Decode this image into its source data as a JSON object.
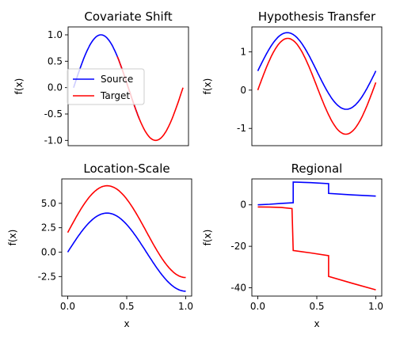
{
  "chart_data": [
    {
      "type": "line",
      "title": "Covariate Shift",
      "xlabel": "",
      "ylabel": "f(x)",
      "xlim": [
        -0.05,
        1.05
      ],
      "ylim": [
        -1.1,
        1.15
      ],
      "xticks": [],
      "yticks": [
        "1.0",
        "0.5",
        "0.0",
        "-0.5",
        "-1.0"
      ],
      "ytick_values": [
        1.0,
        0.5,
        0.0,
        -0.5,
        -1.0
      ],
      "legend": {
        "placement": "center-left",
        "entries": [
          "Source",
          "Target"
        ]
      },
      "series": [
        {
          "name": "Source",
          "color": "#0000ff",
          "x_range": [
            0.0,
            0.6
          ],
          "function": "sin(2*pi*x)"
        },
        {
          "name": "Target",
          "color": "#ff0000",
          "x_range": [
            0.4,
            1.0
          ],
          "function": "sin(2*pi*x)"
        }
      ]
    },
    {
      "type": "line",
      "title": "Hypothesis Transfer",
      "xlabel": "",
      "ylabel": "f(x)",
      "xlim": [
        -0.05,
        1.05
      ],
      "ylim": [
        -1.45,
        1.65
      ],
      "xticks": [],
      "yticks": [
        "1",
        "0",
        "-1"
      ],
      "ytick_values": [
        1,
        0,
        -1
      ],
      "series": [
        {
          "name": "Source",
          "color": "#0000ff",
          "x_range": [
            0.0,
            1.0
          ],
          "function": "sin(2*pi*x)+0.5"
        },
        {
          "name": "Target",
          "color": "#ff0000",
          "x_range": [
            0.0,
            1.0
          ],
          "function": "1.3*sin(2*pi*x)+0.2*x"
        }
      ]
    },
    {
      "type": "line",
      "title": "Location-Scale",
      "xlabel": "x",
      "ylabel": "f(x)",
      "xlim": [
        -0.05,
        1.05
      ],
      "ylim": [
        -4.5,
        7.5
      ],
      "xticks": [
        "0.0",
        "0.5",
        "1.0"
      ],
      "xtick_values": [
        0.0,
        0.5,
        1.0
      ],
      "yticks": [
        "5.0",
        "2.5",
        "0.0",
        "-2.5"
      ],
      "ytick_values": [
        5.0,
        2.5,
        0.0,
        -2.5
      ],
      "series": [
        {
          "name": "Source",
          "color": "#0000ff",
          "x_range": [
            0.0,
            1.0
          ],
          "function": "4*sin(1.5*pi*x)"
        },
        {
          "name": "Target",
          "color": "#ff0000",
          "x_range": [
            0.0,
            1.0
          ],
          "function": "2+4*sin(1.5*pi*x)+0.75*sin(1.5*pi*x)+0.15"
        }
      ]
    },
    {
      "type": "line",
      "title": "Regional",
      "xlabel": "x",
      "ylabel": "f(x)",
      "xlim": [
        -0.05,
        1.05
      ],
      "ylim": [
        -44.0,
        12.5
      ],
      "xticks": [
        "0.0",
        "0.5",
        "1.0"
      ],
      "xtick_values": [
        0.0,
        0.5,
        1.0
      ],
      "yticks": [
        "0",
        "-20",
        "-40"
      ],
      "ytick_values": [
        0,
        -20,
        -40
      ],
      "series": [
        {
          "name": "Source",
          "color": "#0000ff",
          "points": [
            [
              0.0,
              0.0
            ],
            [
              0.1,
              0.3
            ],
            [
              0.2,
              0.7
            ],
            [
              0.3,
              1.0
            ],
            [
              0.3,
              11.0
            ],
            [
              0.45,
              10.7
            ],
            [
              0.6,
              10.2
            ],
            [
              0.6,
              5.5
            ],
            [
              0.8,
              4.8
            ],
            [
              1.0,
              4.2
            ]
          ]
        },
        {
          "name": "Target",
          "color": "#ff0000",
          "points": [
            [
              0.0,
              -1.0
            ],
            [
              0.1,
              -1.1
            ],
            [
              0.2,
              -1.3
            ],
            [
              0.29,
              -1.8
            ],
            [
              0.3,
              -22.0
            ],
            [
              0.45,
              -23.2
            ],
            [
              0.6,
              -24.5
            ],
            [
              0.6,
              -34.5
            ],
            [
              0.8,
              -37.8
            ],
            [
              1.0,
              -41.0
            ]
          ]
        }
      ]
    }
  ]
}
